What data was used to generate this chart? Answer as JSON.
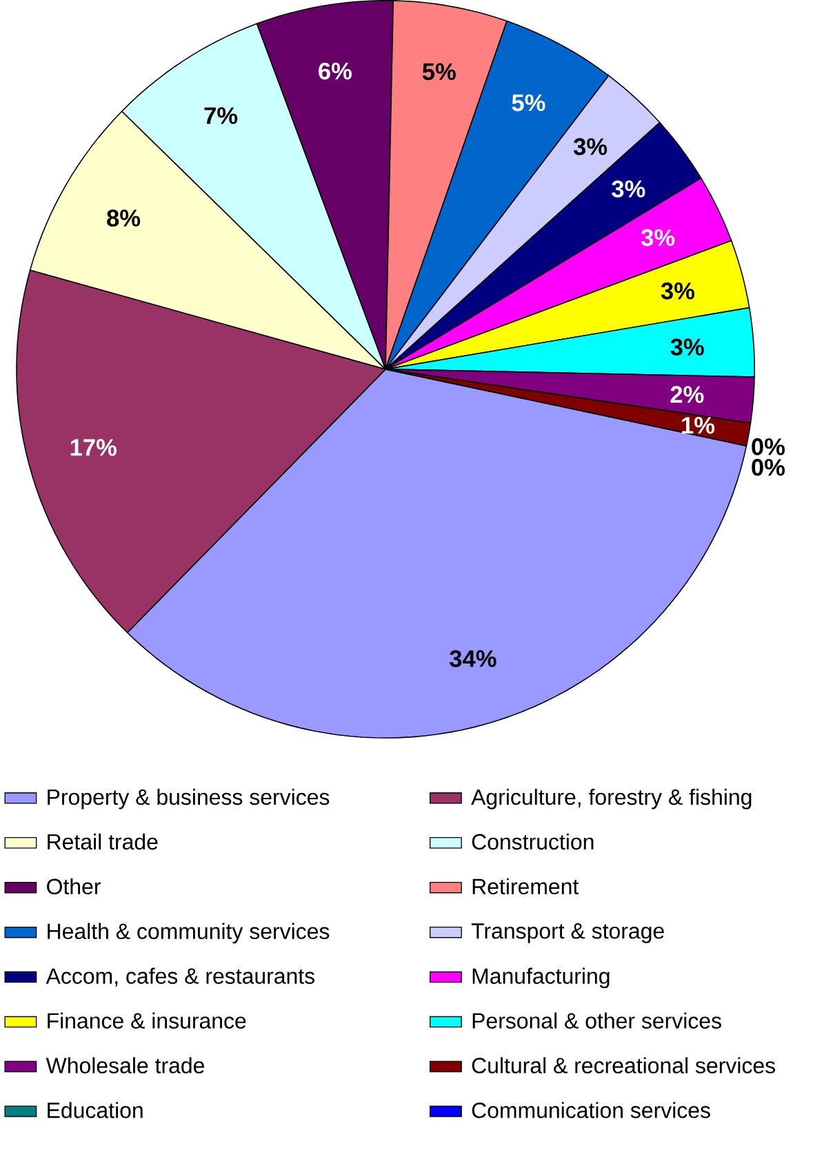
{
  "chart_data": {
    "type": "pie",
    "categories": [
      "Property & business services",
      "Agriculture, forestry & fishing",
      "Retail trade",
      "Construction",
      "Other",
      "Retirement",
      "Health & community services",
      "Transport & storage",
      "Accom, cafes & restaurants",
      "Manufacturing",
      "Finance & insurance",
      "Personal & other services",
      "Wholesale trade",
      "Cultural & recreational services",
      "Education",
      "Communication services"
    ],
    "values": [
      34,
      17,
      8,
      7,
      6,
      5,
      5,
      3,
      3,
      3,
      3,
      3,
      2,
      1,
      0,
      0
    ],
    "value_labels": [
      "34%",
      "17%",
      "8%",
      "7%",
      "6%",
      "5%",
      "5%",
      "3%",
      "3%",
      "3%",
      "3%",
      "3%",
      "2%",
      "1%",
      "0%",
      "0%"
    ],
    "colors": [
      "#9999ff",
      "#993366",
      "#ffffcc",
      "#ccffff",
      "#660066",
      "#ff8080",
      "#0066cc",
      "#ccccff",
      "#000080",
      "#ff00ff",
      "#ffff00",
      "#00ffff",
      "#800080",
      "#800000",
      "#008080",
      "#0000ff"
    ],
    "legend": "bottom"
  }
}
